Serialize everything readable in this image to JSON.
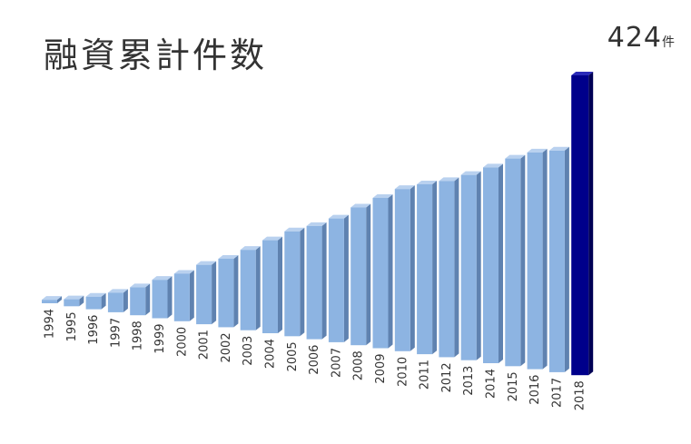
{
  "header": {
    "title": "融資累計件数",
    "total_value": "424",
    "total_unit": "件"
  },
  "colors": {
    "bar_front": "#8db4e2",
    "bar_side": "#5f82b0",
    "bar_top": "#b9d1ef",
    "highlight_front": "#00008b",
    "highlight_side": "#000055",
    "highlight_top": "#2a2ab8"
  },
  "chart_data": {
    "type": "bar",
    "categories": [
      "1994",
      "1995",
      "1996",
      "1997",
      "1998",
      "1999",
      "2000",
      "2001",
      "2002",
      "2003",
      "2004",
      "2005",
      "2006",
      "2007",
      "2008",
      "2009",
      "2010",
      "2011",
      "2012",
      "2013",
      "2014",
      "2015",
      "2016",
      "2017",
      "2018"
    ],
    "values": [
      5,
      10,
      18,
      28,
      40,
      55,
      68,
      85,
      98,
      115,
      133,
      150,
      162,
      177,
      197,
      215,
      232,
      243,
      252,
      265,
      280,
      297,
      310,
      317,
      424
    ],
    "highlight_index": 24,
    "title": "融資累計件数",
    "xlabel": "",
    "ylabel": "",
    "grid": false,
    "legend": "none"
  }
}
